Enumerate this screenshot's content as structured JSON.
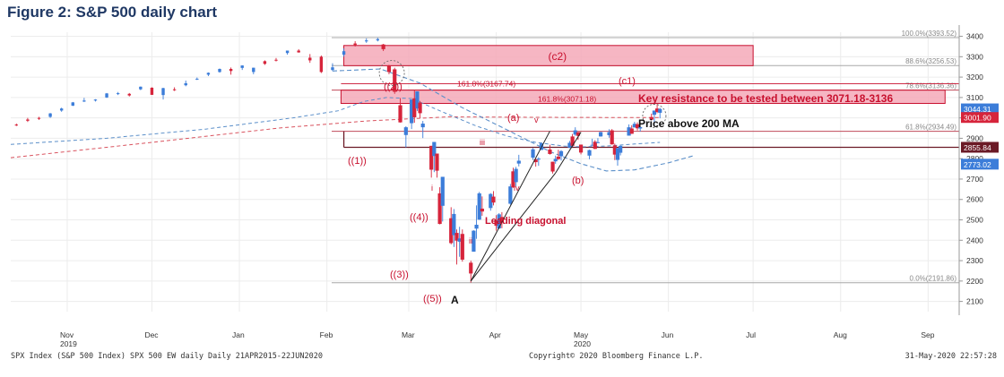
{
  "title": "Figure 2: S&P 500 daily chart",
  "colors": {
    "up": "#3c7dd9",
    "down": "#d6243b",
    "zone_fill": "#f4a9b8",
    "zone_stroke": "#c8102e",
    "ma_blue": "#5b8fc9",
    "ma_red": "#d9535f",
    "text_red": "#c8102e",
    "dark_line": "#6b1a26"
  },
  "footer": {
    "left": "SPX Index (S&P 500 Index) SPX 500 EW daily  Daily 21APR2015-22JUN2020",
    "center": "Copyright© 2020 Bloomberg Finance L.P.",
    "right": "31-May-2020 22:57:28"
  },
  "chart_data": {
    "type": "candlestick",
    "y_range": [
      2050,
      3420
    ],
    "y_ticks": [
      2100,
      2200,
      2300,
      2400,
      2500,
      2600,
      2700,
      2800,
      2900,
      3000,
      3100,
      3200,
      3300,
      3400
    ],
    "x_labels": [
      {
        "label": "Nov",
        "date": "2019-11-01"
      },
      {
        "label": "Dec",
        "date": "2019-12-01"
      },
      {
        "label": "Jan",
        "date": "2020-01-01"
      },
      {
        "label": "Feb",
        "date": "2020-02-01"
      },
      {
        "label": "Mar",
        "date": "2020-03-01"
      },
      {
        "label": "Apr",
        "date": "2020-04-01"
      },
      {
        "label": "May",
        "date": "2020-05-01"
      },
      {
        "label": "Jun",
        "date": "2020-06-01"
      },
      {
        "label": "Jul",
        "date": "2020-07-01"
      },
      {
        "label": "Aug",
        "date": "2020-08-01"
      },
      {
        "label": "Sep",
        "date": "2020-09-01"
      }
    ],
    "year_labels": [
      {
        "label": "2019",
        "date": "2019-11-01"
      },
      {
        "label": "2020",
        "date": "2020-05-01"
      }
    ],
    "x_range": [
      "2019-10-12",
      "2020-09-12"
    ],
    "price_tags": [
      {
        "value": "3044.31",
        "price": 3044.31,
        "color": "#3c7dd9"
      },
      {
        "value": "3001.90",
        "price": 3001.9,
        "color": "#d6243b"
      },
      {
        "value": "2855.84",
        "price": 2855.84,
        "color": "#6b1a26"
      },
      {
        "value": "2773.02",
        "price": 2773.02,
        "color": "#3c7dd9"
      }
    ],
    "fib_levels": [
      {
        "label": "100.0%(3393.52)",
        "price": 3393.52
      },
      {
        "label": "88.6%(3256.53)",
        "price": 3256.53
      },
      {
        "label": "78.6%(3136.36)",
        "price": 3136.36
      },
      {
        "label": "61.8%(2934.49)",
        "price": 2934.49
      },
      {
        "label": "0.0%(2191.86)",
        "price": 2191.86
      }
    ],
    "ext_levels": [
      {
        "label": "161.8%(3167.74)",
        "price": 3167.74
      },
      {
        "label": "161.8%(3071.18)",
        "price": 3071.18
      }
    ],
    "zones": [
      {
        "label": "(c2)",
        "from": "2020-02-07",
        "to": "2020-07-01",
        "low": 3256,
        "high": 3355
      },
      {
        "label": "Key resistance to be tested between 3071.18-3136",
        "from": "2020-02-06",
        "to": "2020-09-07",
        "low": 3071,
        "high": 3136
      }
    ],
    "support_line": {
      "price": 2855.84,
      "from": "2020-02-07",
      "to": "2020-09-12"
    },
    "annotations": {
      "wave_1": "((1))",
      "wave_2": "((2))",
      "wave_3": "((3))",
      "wave_4": "((4))",
      "wave_5": "((5))",
      "wave_A": "A",
      "sub_a": "(a)",
      "sub_b": "(b)",
      "sub_c1": "(c1)",
      "i": "i",
      "ii": "ii",
      "iii": "iii",
      "iv": "iv",
      "v": "v",
      "leading_diagonal": "Leading diagonal",
      "price_above_ma": "Price above 200 MA"
    },
    "candles": [
      {
        "d": "2019-10-14",
        "o": 2967,
        "h": 2972,
        "l": 2960,
        "c": 2966
      },
      {
        "d": "2019-10-18",
        "o": 2992,
        "h": 3000,
        "l": 2980,
        "c": 2986
      },
      {
        "d": "2019-10-22",
        "o": 3000,
        "h": 3005,
        "l": 2990,
        "c": 2996
      },
      {
        "d": "2019-10-26",
        "o": 3005,
        "h": 3024,
        "l": 3000,
        "c": 3022
      },
      {
        "d": "2019-10-30",
        "o": 3036,
        "h": 3050,
        "l": 3030,
        "c": 3046
      },
      {
        "d": "2019-11-03",
        "o": 3060,
        "h": 3078,
        "l": 3058,
        "c": 3076
      },
      {
        "d": "2019-11-07",
        "o": 3080,
        "h": 3098,
        "l": 3078,
        "c": 3085
      },
      {
        "d": "2019-11-11",
        "o": 3085,
        "h": 3092,
        "l": 3080,
        "c": 3090
      },
      {
        "d": "2019-11-15",
        "o": 3100,
        "h": 3122,
        "l": 3098,
        "c": 3120
      },
      {
        "d": "2019-11-19",
        "o": 3118,
        "h": 3127,
        "l": 3112,
        "c": 3121
      },
      {
        "d": "2019-11-23",
        "o": 3118,
        "h": 3122,
        "l": 3105,
        "c": 3110
      },
      {
        "d": "2019-11-27",
        "o": 3140,
        "h": 3154,
        "l": 3136,
        "c": 3153
      },
      {
        "d": "2019-12-01",
        "o": 3148,
        "h": 3150,
        "l": 3113,
        "c": 3113
      },
      {
        "d": "2019-12-05",
        "o": 3112,
        "h": 3148,
        "l": 3090,
        "c": 3146
      },
      {
        "d": "2019-12-09",
        "o": 3140,
        "h": 3150,
        "l": 3132,
        "c": 3136
      },
      {
        "d": "2019-12-13",
        "o": 3160,
        "h": 3183,
        "l": 3155,
        "c": 3170
      },
      {
        "d": "2019-12-17",
        "o": 3192,
        "h": 3198,
        "l": 3186,
        "c": 3192
      },
      {
        "d": "2019-12-21",
        "o": 3212,
        "h": 3223,
        "l": 3205,
        "c": 3221
      },
      {
        "d": "2019-12-25",
        "o": 3225,
        "h": 3242,
        "l": 3222,
        "c": 3240
      },
      {
        "d": "2019-12-29",
        "o": 3240,
        "h": 3247,
        "l": 3212,
        "c": 3230
      },
      {
        "d": "2020-01-02",
        "o": 3245,
        "h": 3258,
        "l": 3235,
        "c": 3257
      },
      {
        "d": "2020-01-06",
        "o": 3225,
        "h": 3246,
        "l": 3214,
        "c": 3246
      },
      {
        "d": "2020-01-10",
        "o": 3278,
        "h": 3282,
        "l": 3260,
        "c": 3265
      },
      {
        "d": "2020-01-14",
        "o": 3285,
        "h": 3294,
        "l": 3277,
        "c": 3283
      },
      {
        "d": "2020-01-18",
        "o": 3318,
        "h": 3330,
        "l": 3310,
        "c": 3330
      },
      {
        "d": "2020-01-22",
        "o": 3330,
        "h": 3337,
        "l": 3320,
        "c": 3321
      },
      {
        "d": "2020-01-26",
        "o": 3295,
        "h": 3313,
        "l": 3270,
        "c": 3282
      },
      {
        "d": "2020-01-30",
        "o": 3300,
        "h": 3306,
        "l": 3220,
        "c": 3225
      },
      {
        "d": "2020-02-03",
        "o": 3235,
        "h": 3268,
        "l": 3230,
        "c": 3248
      },
      {
        "d": "2020-02-07",
        "o": 3310,
        "h": 3341,
        "l": 3300,
        "c": 3327
      },
      {
        "d": "2020-02-11",
        "o": 3365,
        "h": 3376,
        "l": 3350,
        "c": 3357
      },
      {
        "d": "2020-02-15",
        "o": 3375,
        "h": 3390,
        "l": 3368,
        "c": 3380
      },
      {
        "d": "2020-02-19",
        "o": 3380,
        "h": 3393,
        "l": 3375,
        "c": 3386
      },
      {
        "d": "2020-02-21",
        "o": 3360,
        "h": 3363,
        "l": 3328,
        "c": 3337
      },
      {
        "d": "2020-02-23",
        "o": 3257,
        "h": 3260,
        "l": 3214,
        "c": 3225
      },
      {
        "d": "2020-02-25",
        "o": 3238,
        "h": 3246,
        "l": 3118,
        "c": 3128
      },
      {
        "d": "2020-02-27",
        "o": 3062,
        "h": 3097,
        "l": 2977,
        "c": 2978
      },
      {
        "d": "2020-02-29",
        "o": 2916,
        "h": 2959,
        "l": 2855,
        "c": 2954
      },
      {
        "d": "2020-03-02",
        "o": 2974,
        "h": 3090,
        "l": 2945,
        "c": 3090
      },
      {
        "d": "2020-03-03",
        "o": 3096,
        "h": 3136,
        "l": 2976,
        "c": 3003
      },
      {
        "d": "2020-03-04",
        "o": 3046,
        "h": 3130,
        "l": 3034,
        "c": 3130
      },
      {
        "d": "2020-03-05",
        "o": 3075,
        "h": 3083,
        "l": 2999,
        "c": 3023
      },
      {
        "d": "2020-03-06",
        "o": 2954,
        "h": 2985,
        "l": 2901,
        "c": 2972
      },
      {
        "d": "2020-03-09",
        "o": 2863,
        "h": 2863,
        "l": 2707,
        "c": 2746
      },
      {
        "d": "2020-03-10",
        "o": 2813,
        "h": 2882,
        "l": 2734,
        "c": 2882
      },
      {
        "d": "2020-03-11",
        "o": 2825,
        "h": 2825,
        "l": 2707,
        "c": 2741
      },
      {
        "d": "2020-03-12",
        "o": 2630,
        "h": 2660,
        "l": 2478,
        "c": 2480
      },
      {
        "d": "2020-03-13",
        "o": 2569,
        "h": 2711,
        "l": 2492,
        "c": 2711
      },
      {
        "d": "2020-03-16",
        "o": 2508,
        "h": 2562,
        "l": 2380,
        "c": 2386
      },
      {
        "d": "2020-03-17",
        "o": 2425,
        "h": 2553,
        "l": 2367,
        "c": 2529
      },
      {
        "d": "2020-03-18",
        "o": 2436,
        "h": 2453,
        "l": 2281,
        "c": 2398
      },
      {
        "d": "2020-03-19",
        "o": 2393,
        "h": 2466,
        "l": 2319,
        "c": 2409
      },
      {
        "d": "2020-03-20",
        "o": 2431,
        "h": 2453,
        "l": 2295,
        "c": 2305
      },
      {
        "d": "2020-03-23",
        "o": 2290,
        "h": 2300,
        "l": 2192,
        "c": 2237
      },
      {
        "d": "2020-03-24",
        "o": 2344,
        "h": 2449,
        "l": 2344,
        "c": 2447
      },
      {
        "d": "2020-03-25",
        "o": 2457,
        "h": 2571,
        "l": 2407,
        "c": 2476
      },
      {
        "d": "2020-03-26",
        "o": 2501,
        "h": 2637,
        "l": 2500,
        "c": 2630
      },
      {
        "d": "2020-03-27",
        "o": 2555,
        "h": 2615,
        "l": 2520,
        "c": 2541
      },
      {
        "d": "2020-03-30",
        "o": 2558,
        "h": 2631,
        "l": 2545,
        "c": 2627
      },
      {
        "d": "2020-03-31",
        "o": 2614,
        "h": 2641,
        "l": 2571,
        "c": 2585
      },
      {
        "d": "2020-04-01",
        "o": 2498,
        "h": 2523,
        "l": 2447,
        "c": 2471
      },
      {
        "d": "2020-04-02",
        "o": 2458,
        "h": 2533,
        "l": 2455,
        "c": 2527
      },
      {
        "d": "2020-04-03",
        "o": 2514,
        "h": 2538,
        "l": 2459,
        "c": 2489
      },
      {
        "d": "2020-04-06",
        "o": 2579,
        "h": 2676,
        "l": 2574,
        "c": 2664
      },
      {
        "d": "2020-04-07",
        "o": 2738,
        "h": 2756,
        "l": 2657,
        "c": 2659
      },
      {
        "d": "2020-04-08",
        "o": 2685,
        "h": 2760,
        "l": 2664,
        "c": 2750
      },
      {
        "d": "2020-04-09",
        "o": 2776,
        "h": 2819,
        "l": 2762,
        "c": 2790
      },
      {
        "d": "2020-04-14",
        "o": 2805,
        "h": 2852,
        "l": 2794,
        "c": 2846
      },
      {
        "d": "2020-04-15",
        "o": 2796,
        "h": 2801,
        "l": 2761,
        "c": 2783
      },
      {
        "d": "2020-04-16",
        "o": 2799,
        "h": 2807,
        "l": 2765,
        "c": 2800
      },
      {
        "d": "2020-04-17",
        "o": 2843,
        "h": 2880,
        "l": 2842,
        "c": 2875
      },
      {
        "d": "2020-04-20",
        "o": 2845,
        "h": 2868,
        "l": 2820,
        "c": 2823
      },
      {
        "d": "2020-04-21",
        "o": 2785,
        "h": 2785,
        "l": 2727,
        "c": 2737
      },
      {
        "d": "2020-04-22",
        "o": 2787,
        "h": 2815,
        "l": 2775,
        "c": 2799
      },
      {
        "d": "2020-04-23",
        "o": 2810,
        "h": 2844,
        "l": 2794,
        "c": 2798
      },
      {
        "d": "2020-04-24",
        "o": 2812,
        "h": 2842,
        "l": 2791,
        "c": 2837
      },
      {
        "d": "2020-04-27",
        "o": 2854,
        "h": 2887,
        "l": 2852,
        "c": 2878
      },
      {
        "d": "2020-04-28",
        "o": 2909,
        "h": 2921,
        "l": 2860,
        "c": 2863
      },
      {
        "d": "2020-04-29",
        "o": 2918,
        "h": 2954,
        "l": 2912,
        "c": 2939
      },
      {
        "d": "2020-04-30",
        "o": 2930,
        "h": 2930,
        "l": 2892,
        "c": 2912
      },
      {
        "d": "2020-05-01",
        "o": 2869,
        "h": 2869,
        "l": 2821,
        "c": 2830
      },
      {
        "d": "2020-05-04",
        "o": 2815,
        "h": 2844,
        "l": 2797,
        "c": 2842
      },
      {
        "d": "2020-05-05",
        "o": 2868,
        "h": 2898,
        "l": 2864,
        "c": 2868
      },
      {
        "d": "2020-05-06",
        "o": 2883,
        "h": 2891,
        "l": 2847,
        "c": 2848
      },
      {
        "d": "2020-05-07",
        "o": 2878,
        "h": 2901,
        "l": 2876,
        "c": 2881
      },
      {
        "d": "2020-05-08",
        "o": 2909,
        "h": 2932,
        "l": 2908,
        "c": 2930
      },
      {
        "d": "2020-05-11",
        "o": 2915,
        "h": 2944,
        "l": 2903,
        "c": 2930
      },
      {
        "d": "2020-05-12",
        "o": 2939,
        "h": 2945,
        "l": 2869,
        "c": 2870
      },
      {
        "d": "2020-05-13",
        "o": 2865,
        "h": 2874,
        "l": 2793,
        "c": 2820
      },
      {
        "d": "2020-05-14",
        "o": 2794,
        "h": 2852,
        "l": 2766,
        "c": 2852
      },
      {
        "d": "2020-05-15",
        "o": 2829,
        "h": 2865,
        "l": 2816,
        "c": 2863
      },
      {
        "d": "2020-05-18",
        "o": 2913,
        "h": 2968,
        "l": 2913,
        "c": 2954
      },
      {
        "d": "2020-05-19",
        "o": 2948,
        "h": 2964,
        "l": 2922,
        "c": 2922
      },
      {
        "d": "2020-05-20",
        "o": 2953,
        "h": 2981,
        "l": 2953,
        "c": 2971
      },
      {
        "d": "2020-05-21",
        "o": 2969,
        "h": 2978,
        "l": 2938,
        "c": 2949
      },
      {
        "d": "2020-05-22",
        "o": 2948,
        "h": 2956,
        "l": 2933,
        "c": 2955
      },
      {
        "d": "2020-05-26",
        "o": 3004,
        "h": 3021,
        "l": 2988,
        "c": 2991
      },
      {
        "d": "2020-05-27",
        "o": 3015,
        "h": 3036,
        "l": 2969,
        "c": 3036
      },
      {
        "d": "2020-05-28",
        "o": 3046,
        "h": 3068,
        "l": 3023,
        "c": 3029
      },
      {
        "d": "2020-05-29",
        "o": 3025,
        "h": 3049,
        "l": 2998,
        "c": 3044
      }
    ],
    "ma_blue": [
      {
        "d": "2019-10-12",
        "v": 2870
      },
      {
        "d": "2019-11-15",
        "v": 2900
      },
      {
        "d": "2019-12-20",
        "v": 2945
      },
      {
        "d": "2020-01-20",
        "v": 3000
      },
      {
        "d": "2020-02-05",
        "v": 3035
      },
      {
        "d": "2020-02-14",
        "v": 3080
      },
      {
        "d": "2020-02-22",
        "v": 3100
      },
      {
        "d": "2020-03-02",
        "v": 3095
      },
      {
        "d": "2020-03-12",
        "v": 3035
      },
      {
        "d": "2020-03-25",
        "v": 2960
      },
      {
        "d": "2020-04-05",
        "v": 2910
      },
      {
        "d": "2020-04-15",
        "v": 2880
      },
      {
        "d": "2020-04-25",
        "v": 2862
      },
      {
        "d": "2020-05-01",
        "v": 2858
      },
      {
        "d": "2020-05-10",
        "v": 2862
      },
      {
        "d": "2020-05-20",
        "v": 2872
      },
      {
        "d": "2020-05-29",
        "v": 2880
      }
    ],
    "ma_blue_curve": [
      {
        "d": "2020-02-03",
        "v": 3230
      },
      {
        "d": "2020-02-20",
        "v": 3240
      },
      {
        "d": "2020-03-05",
        "v": 3170
      },
      {
        "d": "2020-03-20",
        "v": 3050
      },
      {
        "d": "2020-04-05",
        "v": 2940
      },
      {
        "d": "2020-04-20",
        "v": 2835
      },
      {
        "d": "2020-05-01",
        "v": 2775
      },
      {
        "d": "2020-05-10",
        "v": 2740
      },
      {
        "d": "2020-05-20",
        "v": 2745
      },
      {
        "d": "2020-06-01",
        "v": 2780
      },
      {
        "d": "2020-06-10",
        "v": 2815
      }
    ],
    "ma_red": [
      {
        "d": "2019-10-12",
        "v": 2805
      },
      {
        "d": "2019-12-01",
        "v": 2880
      },
      {
        "d": "2020-01-15",
        "v": 2950
      },
      {
        "d": "2020-02-15",
        "v": 2985
      },
      {
        "d": "2020-03-15",
        "v": 3005
      },
      {
        "d": "2020-04-15",
        "v": 3003
      },
      {
        "d": "2020-05-10",
        "v": 3002
      },
      {
        "d": "2020-05-29",
        "v": 3002
      }
    ]
  }
}
